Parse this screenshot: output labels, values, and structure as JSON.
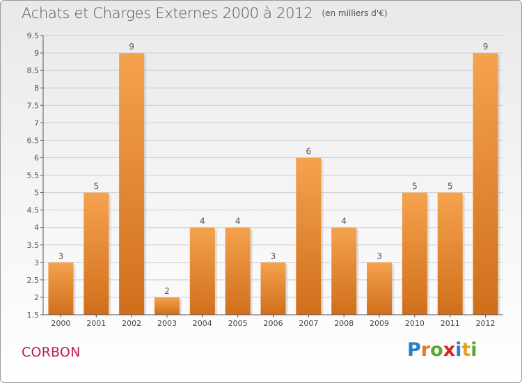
{
  "title": "Achats et Charges Externes 2000 à 2012",
  "unit": "(en milliers d'€)",
  "town": "CORBON",
  "logo": {
    "p": "P",
    "r": "r",
    "o": "o",
    "x": "x",
    "i1": "i",
    "t": "t",
    "i2": "i"
  },
  "colors": {
    "bar_top": "#f5a24e",
    "bar_bottom": "#d06f1b",
    "grid": "#cccccc",
    "axis": "#555555"
  },
  "chart_data": {
    "type": "bar",
    "title": "Achats et Charges Externes 2000 à 2012",
    "categories": [
      "2000",
      "2001",
      "2002",
      "2003",
      "2004",
      "2005",
      "2006",
      "2007",
      "2008",
      "2009",
      "2010",
      "2011",
      "2012"
    ],
    "values": [
      3,
      5,
      9,
      2,
      4,
      4,
      3,
      6,
      4,
      3,
      5,
      5,
      9
    ],
    "ylim": [
      1.5,
      9.5
    ],
    "yticks": [
      1.5,
      2,
      2.5,
      3,
      3.5,
      4,
      4.5,
      5,
      5.5,
      6,
      6.5,
      7,
      7.5,
      8,
      8.5,
      9,
      9.5
    ],
    "grid": true
  }
}
